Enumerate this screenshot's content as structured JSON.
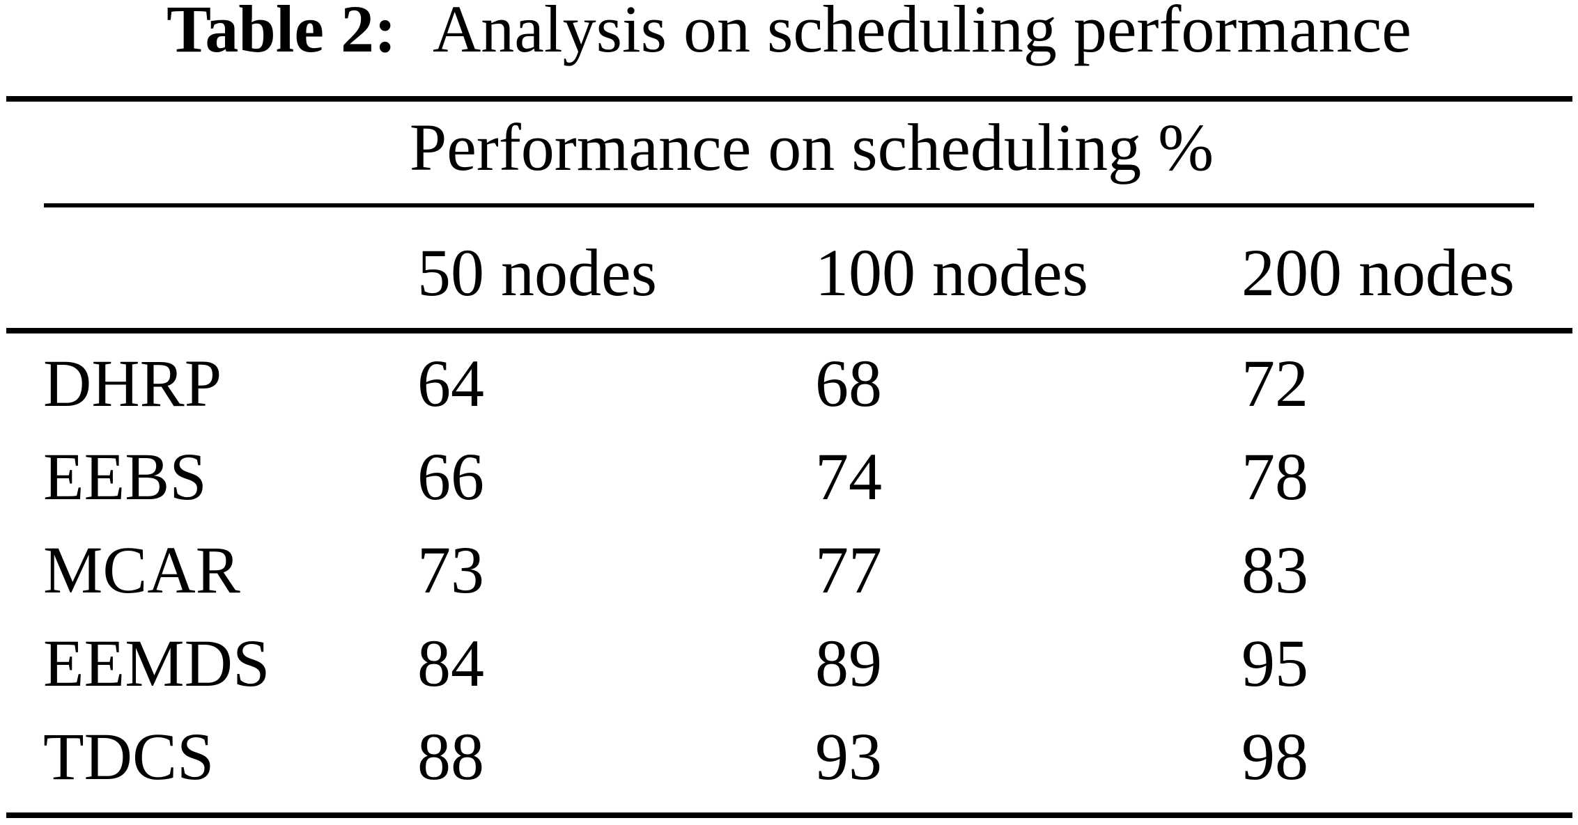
{
  "caption": {
    "label": "Table 2:",
    "text": "Analysis on scheduling performance"
  },
  "table": {
    "spanning_header": "Performance on scheduling %",
    "columns": [
      "50 nodes",
      "100 nodes",
      "200 nodes"
    ],
    "rows": [
      {
        "method": "DHRP",
        "values": [
          "64",
          "68",
          "72"
        ]
      },
      {
        "method": "EEBS",
        "values": [
          "66",
          "74",
          "78"
        ]
      },
      {
        "method": "MCAR",
        "values": [
          "73",
          "77",
          "83"
        ]
      },
      {
        "method": "EEMDS",
        "values": [
          "84",
          "89",
          "95"
        ]
      },
      {
        "method": "TDCS",
        "values": [
          "88",
          "93",
          "98"
        ]
      }
    ]
  },
  "colors": {
    "background": "#ffffff",
    "text": "#000000",
    "rule": "#000000"
  },
  "chart_data": {
    "type": "table",
    "title": "Table 2: Analysis on scheduling performance",
    "group_header": "Performance on scheduling %",
    "columns": [
      "50 nodes",
      "100 nodes",
      "200 nodes"
    ],
    "row_labels": [
      "DHRP",
      "EEBS",
      "MCAR",
      "EEMDS",
      "TDCS"
    ],
    "values": [
      [
        64,
        68,
        72
      ],
      [
        66,
        74,
        78
      ],
      [
        73,
        77,
        83
      ],
      [
        84,
        89,
        95
      ],
      [
        88,
        93,
        98
      ]
    ],
    "unit": "%"
  }
}
